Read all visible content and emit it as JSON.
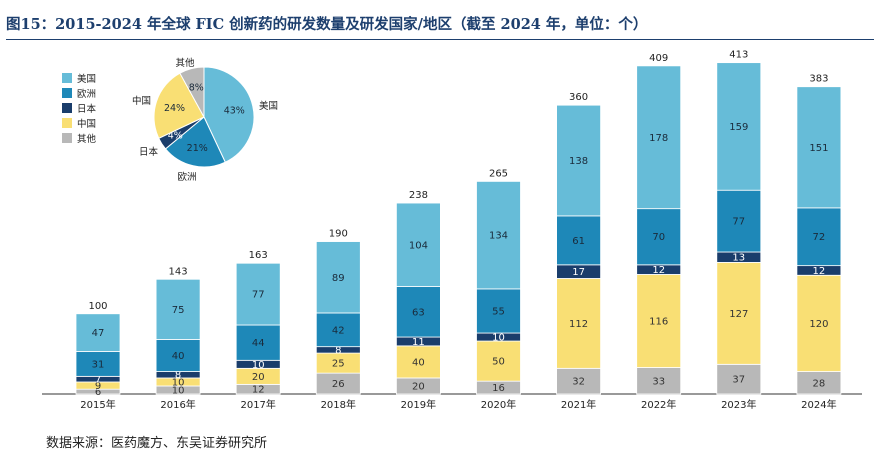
{
  "title": "图15：2015-2024 年全球 FIC 创新药的研发数量及研发国家/地区（截至 2024 年，单位：个）",
  "source": "数据来源：医药魔方、东吴证券研究所",
  "colors": {
    "美国": "#66bcd8",
    "欧洲": "#1e88b8",
    "日本": "#1a3d6b",
    "中国": "#f9df74",
    "其他": "#b8b8b8"
  },
  "legend": [
    "美国",
    "欧洲",
    "日本",
    "中国",
    "其他"
  ],
  "chart_data": [
    {
      "type": "bar",
      "stacked": true,
      "categories": [
        "2015年",
        "2016年",
        "2017年",
        "2018年",
        "2019年",
        "2020年",
        "2021年",
        "2022年",
        "2023年",
        "2024年"
      ],
      "series": [
        {
          "name": "其他",
          "values": [
            6,
            10,
            12,
            26,
            20,
            16,
            32,
            33,
            37,
            28
          ]
        },
        {
          "name": "中国",
          "values": [
            9,
            10,
            20,
            25,
            40,
            50,
            112,
            116,
            127,
            120
          ]
        },
        {
          "name": "日本",
          "values": [
            7,
            8,
            10,
            8,
            11,
            10,
            17,
            12,
            13,
            12
          ]
        },
        {
          "name": "欧洲",
          "values": [
            31,
            40,
            44,
            42,
            63,
            55,
            61,
            70,
            77,
            72
          ]
        },
        {
          "name": "美国",
          "values": [
            47,
            75,
            77,
            89,
            104,
            134,
            138,
            178,
            159,
            151
          ]
        }
      ],
      "totals": [
        100,
        143,
        163,
        190,
        238,
        265,
        360,
        409,
        413,
        383
      ],
      "ylim": [
        0,
        430
      ],
      "xlabel": "",
      "ylabel": ""
    },
    {
      "type": "pie",
      "labels": [
        "美国",
        "欧洲",
        "日本",
        "中国",
        "其他"
      ],
      "values": [
        43,
        21,
        4,
        24,
        8
      ],
      "value_labels": [
        "43%",
        "21%",
        "4%",
        "24%",
        "8%"
      ]
    }
  ]
}
